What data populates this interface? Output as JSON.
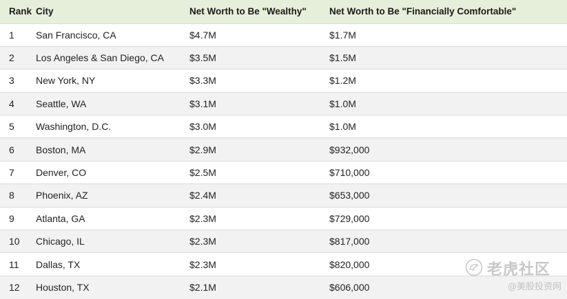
{
  "table": {
    "headers": {
      "rank": "Rank",
      "city": "City",
      "wealthy": "Net Worth to Be \"Wealthy\"",
      "comfortable": "Net Worth to Be \"Financially Comfortable\""
    },
    "rows": [
      {
        "rank": "1",
        "city": "San Francisco, CA",
        "wealthy": "$4.7M",
        "comfortable": "$1.7M"
      },
      {
        "rank": "2",
        "city": "Los Angeles & San Diego, CA",
        "wealthy": "$3.5M",
        "comfortable": "$1.5M"
      },
      {
        "rank": "3",
        "city": "New York, NY",
        "wealthy": "$3.3M",
        "comfortable": "$1.2M"
      },
      {
        "rank": "4",
        "city": "Seattle, WA",
        "wealthy": "$3.1M",
        "comfortable": "$1.0M"
      },
      {
        "rank": "5",
        "city": "Washington, D.C.",
        "wealthy": "$3.0M",
        "comfortable": "$1.0M"
      },
      {
        "rank": "6",
        "city": "Boston, MA",
        "wealthy": "$2.9M",
        "comfortable": "$932,000"
      },
      {
        "rank": "7",
        "city": "Denver, CO",
        "wealthy": "$2.5M",
        "comfortable": "$710,000"
      },
      {
        "rank": "8",
        "city": "Phoenix, AZ",
        "wealthy": "$2.4M",
        "comfortable": "$653,000"
      },
      {
        "rank": "9",
        "city": "Atlanta, GA",
        "wealthy": "$2.3M",
        "comfortable": "$729,000"
      },
      {
        "rank": "10",
        "city": "Chicago, IL",
        "wealthy": "$2.3M",
        "comfortable": "$817,000"
      },
      {
        "rank": "11",
        "city": "Dallas, TX",
        "wealthy": "$2.3M",
        "comfortable": "$820,000"
      },
      {
        "rank": "12",
        "city": "Houston, TX",
        "wealthy": "$2.1M",
        "comfortable": "$606,000"
      }
    ]
  },
  "watermark": {
    "brand": "老虎社区",
    "handle": "@美股投资网",
    "icon": "tiger-logo-icon"
  },
  "colors": {
    "header_bg": "#e6efda",
    "row_alt_bg": "#f2f2f2",
    "row_bg": "#ffffff",
    "divider": "#d9d9d9"
  }
}
